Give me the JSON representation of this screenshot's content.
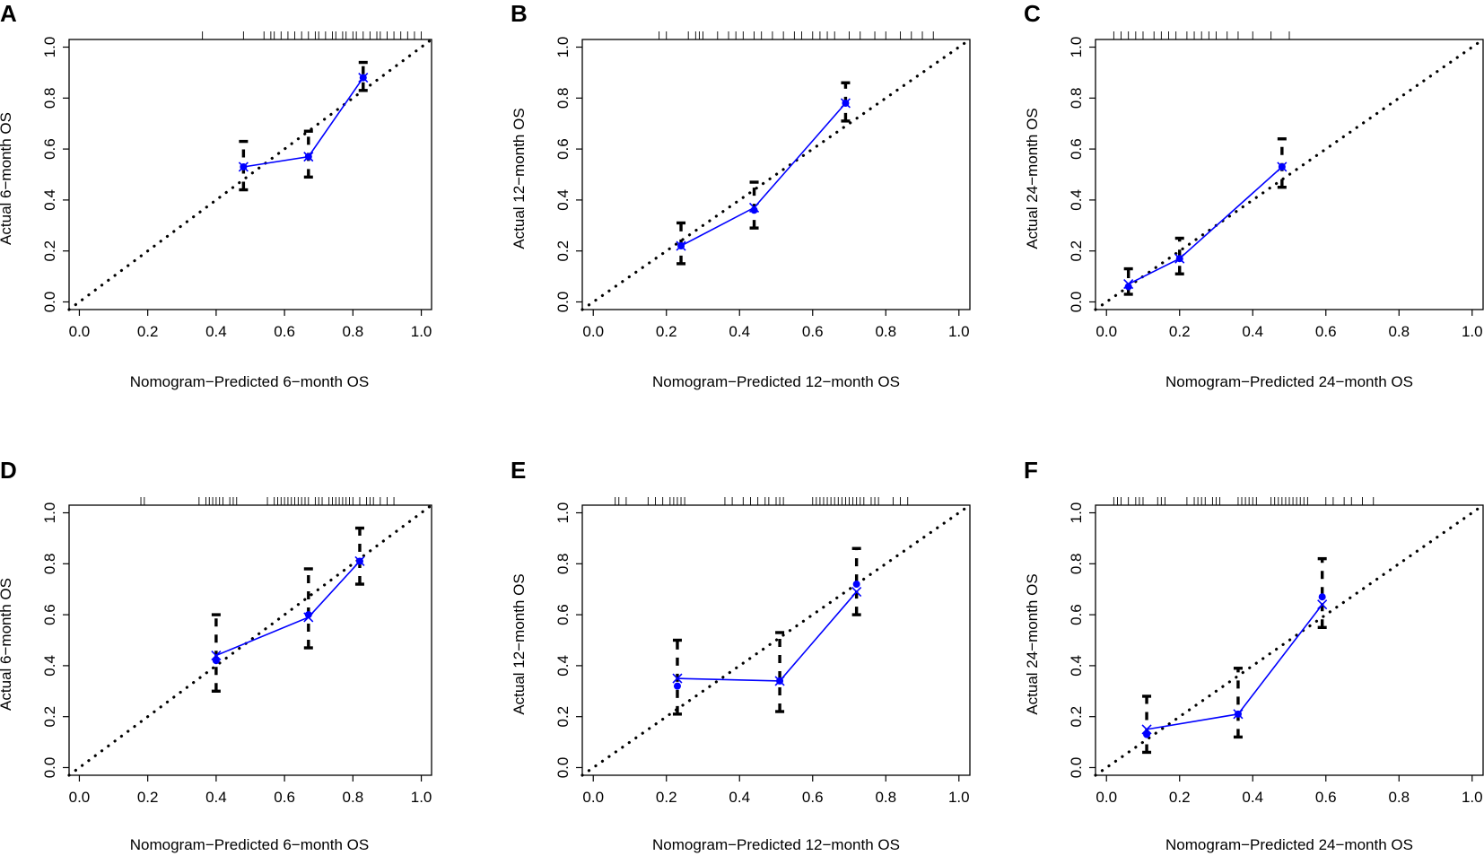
{
  "figure": {
    "panel_letters": [
      "A",
      "B",
      "C",
      "D",
      "E",
      "F"
    ]
  },
  "colors": {
    "calibration_line": "#0000ff",
    "points": "#0000ff",
    "error_bars": "#000000",
    "reference_line": "#000000",
    "frame": "#000000"
  },
  "chart_data": [
    {
      "panel": "A",
      "type": "scatter",
      "xlabel": "Nomogram−Predicted 6−month OS",
      "ylabel": "Actual 6−month OS",
      "xlim": [
        -0.03,
        1.03
      ],
      "ylim": [
        -0.03,
        1.03
      ],
      "xticks": [
        "0.0",
        "0.2",
        "0.4",
        "0.6",
        "0.8",
        "1.0"
      ],
      "yticks": [
        "0.0",
        "0.2",
        "0.4",
        "0.6",
        "0.8",
        "1.0"
      ],
      "reference_line": "ideal y = x (dotted)",
      "points": [
        {
          "x": 0.48,
          "observed": 0.53,
          "corrected": 0.53,
          "lower": 0.44,
          "upper": 0.63
        },
        {
          "x": 0.67,
          "observed": 0.57,
          "corrected": 0.57,
          "lower": 0.49,
          "upper": 0.67
        },
        {
          "x": 0.83,
          "observed": 0.88,
          "corrected": 0.88,
          "lower": 0.83,
          "upper": 0.94
        }
      ],
      "rug": [
        0.36,
        0.48,
        0.54,
        0.56,
        0.57,
        0.59,
        0.61,
        0.63,
        0.65,
        0.67,
        0.69,
        0.7,
        0.72,
        0.74,
        0.75,
        0.77,
        0.78,
        0.8,
        0.81,
        0.83,
        0.85,
        0.87,
        0.88,
        0.9,
        0.92,
        0.94,
        0.96,
        0.98,
        1.0
      ]
    },
    {
      "panel": "B",
      "type": "scatter",
      "xlabel": "Nomogram−Predicted 12−month OS",
      "ylabel": "Actual 12−month OS",
      "xlim": [
        -0.03,
        1.03
      ],
      "ylim": [
        -0.03,
        1.03
      ],
      "xticks": [
        "0.0",
        "0.2",
        "0.4",
        "0.6",
        "0.8",
        "1.0"
      ],
      "yticks": [
        "0.0",
        "0.2",
        "0.4",
        "0.6",
        "0.8",
        "1.0"
      ],
      "reference_line": "ideal y = x (dotted)",
      "points": [
        {
          "x": 0.24,
          "observed": 0.22,
          "corrected": 0.22,
          "lower": 0.15,
          "upper": 0.31
        },
        {
          "x": 0.44,
          "observed": 0.36,
          "corrected": 0.37,
          "lower": 0.29,
          "upper": 0.47
        },
        {
          "x": 0.69,
          "observed": 0.78,
          "corrected": 0.78,
          "lower": 0.71,
          "upper": 0.86
        }
      ],
      "rug": [
        0.18,
        0.2,
        0.26,
        0.28,
        0.29,
        0.3,
        0.34,
        0.37,
        0.39,
        0.41,
        0.44,
        0.46,
        0.49,
        0.52,
        0.55,
        0.57,
        0.6,
        0.62,
        0.64,
        0.66,
        0.7,
        0.73,
        0.77,
        0.8,
        0.84,
        0.87,
        0.9,
        0.93
      ]
    },
    {
      "panel": "C",
      "type": "scatter",
      "xlabel": "Nomogram−Predicted 24−month OS",
      "ylabel": "Actual 24−month OS",
      "xlim": [
        -0.03,
        1.03
      ],
      "ylim": [
        -0.03,
        1.03
      ],
      "xticks": [
        "0.0",
        "0.2",
        "0.4",
        "0.6",
        "0.8",
        "1.0"
      ],
      "yticks": [
        "0.0",
        "0.2",
        "0.4",
        "0.6",
        "0.8",
        "1.0"
      ],
      "reference_line": "ideal y = x (dotted)",
      "points": [
        {
          "x": 0.06,
          "observed": 0.06,
          "corrected": 0.07,
          "lower": 0.03,
          "upper": 0.13
        },
        {
          "x": 0.2,
          "observed": 0.17,
          "corrected": 0.17,
          "lower": 0.11,
          "upper": 0.25
        },
        {
          "x": 0.48,
          "observed": 0.53,
          "corrected": 0.53,
          "lower": 0.45,
          "upper": 0.64
        }
      ],
      "rug": [
        0.02,
        0.04,
        0.06,
        0.08,
        0.1,
        0.13,
        0.15,
        0.17,
        0.19,
        0.22,
        0.24,
        0.26,
        0.28,
        0.3,
        0.33,
        0.36,
        0.4,
        0.45,
        0.5
      ]
    },
    {
      "panel": "D",
      "type": "scatter",
      "xlabel": "Nomogram−Predicted 6−month OS",
      "ylabel": "Actual 6−month OS",
      "xlim": [
        -0.03,
        1.03
      ],
      "ylim": [
        -0.03,
        1.03
      ],
      "xticks": [
        "0.0",
        "0.2",
        "0.4",
        "0.6",
        "0.8",
        "1.0"
      ],
      "yticks": [
        "0.0",
        "0.2",
        "0.4",
        "0.6",
        "0.8",
        "1.0"
      ],
      "reference_line": "ideal y = x (dotted)",
      "points": [
        {
          "x": 0.4,
          "observed": 0.42,
          "corrected": 0.44,
          "lower": 0.3,
          "upper": 0.6
        },
        {
          "x": 0.67,
          "observed": 0.6,
          "corrected": 0.59,
          "lower": 0.47,
          "upper": 0.78
        },
        {
          "x": 0.82,
          "observed": 0.81,
          "corrected": 0.81,
          "lower": 0.72,
          "upper": 0.94
        }
      ],
      "rug": [
        0.18,
        0.19,
        0.35,
        0.37,
        0.38,
        0.39,
        0.4,
        0.41,
        0.42,
        0.44,
        0.45,
        0.46,
        0.55,
        0.57,
        0.58,
        0.59,
        0.6,
        0.61,
        0.62,
        0.63,
        0.64,
        0.65,
        0.66,
        0.67,
        0.69,
        0.7,
        0.71,
        0.73,
        0.74,
        0.75,
        0.76,
        0.77,
        0.78,
        0.79,
        0.8,
        0.82,
        0.84,
        0.85,
        0.86,
        0.88,
        0.9,
        0.92
      ]
    },
    {
      "panel": "E",
      "type": "scatter",
      "xlabel": "Nomogram−Predicted 12−month OS",
      "ylabel": "Actual 12−month OS",
      "xlim": [
        -0.03,
        1.03
      ],
      "ylim": [
        -0.03,
        1.03
      ],
      "xticks": [
        "0.0",
        "0.2",
        "0.4",
        "0.6",
        "0.8",
        "1.0"
      ],
      "yticks": [
        "0.0",
        "0.2",
        "0.4",
        "0.6",
        "0.8",
        "1.0"
      ],
      "reference_line": "ideal y = x (dotted)",
      "points": [
        {
          "x": 0.23,
          "observed": 0.32,
          "corrected": 0.35,
          "lower": 0.21,
          "upper": 0.5
        },
        {
          "x": 0.51,
          "observed": 0.34,
          "corrected": 0.34,
          "lower": 0.22,
          "upper": 0.53
        },
        {
          "x": 0.72,
          "observed": 0.72,
          "corrected": 0.69,
          "lower": 0.6,
          "upper": 0.86
        }
      ],
      "rug": [
        0.06,
        0.07,
        0.09,
        0.15,
        0.17,
        0.19,
        0.21,
        0.22,
        0.23,
        0.24,
        0.25,
        0.36,
        0.38,
        0.41,
        0.43,
        0.45,
        0.47,
        0.48,
        0.5,
        0.51,
        0.52,
        0.6,
        0.61,
        0.62,
        0.63,
        0.64,
        0.65,
        0.66,
        0.67,
        0.68,
        0.69,
        0.7,
        0.71,
        0.72,
        0.73,
        0.74,
        0.76,
        0.77,
        0.78,
        0.82,
        0.84,
        0.86
      ]
    },
    {
      "panel": "F",
      "type": "scatter",
      "xlabel": "Nomogram−Predicted 24−month OS",
      "ylabel": "Actual 24−month OS",
      "xlim": [
        -0.03,
        1.03
      ],
      "ylim": [
        -0.03,
        1.03
      ],
      "xticks": [
        "0.0",
        "0.2",
        "0.4",
        "0.6",
        "0.8",
        "1.0"
      ],
      "yticks": [
        "0.0",
        "0.2",
        "0.4",
        "0.6",
        "0.8",
        "1.0"
      ],
      "reference_line": "ideal y = x (dotted)",
      "points": [
        {
          "x": 0.11,
          "observed": 0.13,
          "corrected": 0.15,
          "lower": 0.06,
          "upper": 0.28
        },
        {
          "x": 0.36,
          "observed": 0.21,
          "corrected": 0.21,
          "lower": 0.12,
          "upper": 0.39
        },
        {
          "x": 0.59,
          "observed": 0.67,
          "corrected": 0.64,
          "lower": 0.55,
          "upper": 0.82
        }
      ],
      "rug": [
        0.02,
        0.03,
        0.04,
        0.06,
        0.08,
        0.09,
        0.1,
        0.14,
        0.15,
        0.16,
        0.22,
        0.24,
        0.25,
        0.26,
        0.27,
        0.29,
        0.3,
        0.31,
        0.36,
        0.37,
        0.38,
        0.39,
        0.4,
        0.41,
        0.45,
        0.46,
        0.47,
        0.48,
        0.49,
        0.5,
        0.51,
        0.52,
        0.53,
        0.54,
        0.55,
        0.6,
        0.62,
        0.65,
        0.67,
        0.7,
        0.73
      ]
    }
  ]
}
